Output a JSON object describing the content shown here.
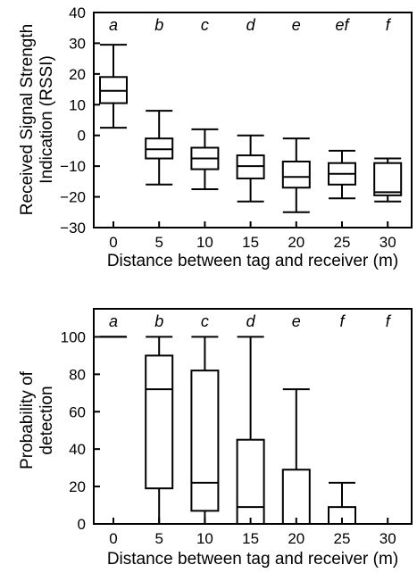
{
  "chart_data": [
    {
      "type": "boxplot",
      "categories": [
        "0",
        "5",
        "10",
        "15",
        "20",
        "25",
        "30"
      ],
      "group_letters": [
        "a",
        "b",
        "c",
        "d",
        "e",
        "ef",
        "f"
      ],
      "xlabel": "Distance between tag and receiver (m)",
      "ylabel": [
        "Received Signal Strength",
        "Indication (RSSI)"
      ],
      "ylim": [
        -30,
        40
      ],
      "yticks": [
        "40",
        "30",
        "20",
        "10",
        "0",
        "−10",
        "−20",
        "−30"
      ],
      "ytick_values": [
        40,
        30,
        20,
        10,
        0,
        -10,
        -20,
        -30
      ],
      "boxes": [
        {
          "min": 2.5,
          "q1": 10.5,
          "median": 14.5,
          "q3": 19,
          "max": 29.5
        },
        {
          "min": -16,
          "q1": -7.5,
          "median": -4.5,
          "q3": -1,
          "max": 8
        },
        {
          "min": -17.5,
          "q1": -11,
          "median": -7.5,
          "q3": -4,
          "max": 2
        },
        {
          "min": -21.5,
          "q1": -14,
          "median": -10,
          "q3": -6.5,
          "max": 0
        },
        {
          "min": -25,
          "q1": -17,
          "median": -13.5,
          "q3": -8.5,
          "max": -1
        },
        {
          "min": -20.5,
          "q1": -16,
          "median": -12.5,
          "q3": -9,
          "max": -5
        },
        {
          "min": -21.5,
          "q1": -19.5,
          "median": -18.5,
          "q3": -9,
          "max": -7.5
        }
      ]
    },
    {
      "type": "boxplot",
      "categories": [
        "0",
        "5",
        "10",
        "15",
        "20",
        "25",
        "30"
      ],
      "group_letters": [
        "a",
        "b",
        "c",
        "d",
        "e",
        "f",
        "f"
      ],
      "xlabel": "Distance between tag and receiver (m)",
      "ylabel": [
        "Probability of",
        "detection"
      ],
      "ylim": [
        0,
        115
      ],
      "yticks": [
        "100",
        "80",
        "60",
        "40",
        "20",
        "0"
      ],
      "ytick_values": [
        100,
        80,
        60,
        40,
        20,
        0
      ],
      "boxes": [
        {
          "min": 100,
          "q1": 100,
          "median": 100,
          "q3": 100,
          "max": 100
        },
        {
          "min": 0,
          "q1": 19,
          "median": 72,
          "q3": 90,
          "max": 100
        },
        {
          "min": 0,
          "q1": 7,
          "median": 22,
          "q3": 82,
          "max": 100
        },
        {
          "min": 0,
          "q1": 0,
          "median": 9,
          "q3": 45,
          "max": 100
        },
        {
          "min": 0,
          "q1": 0,
          "median": 0,
          "q3": 29,
          "max": 72
        },
        {
          "min": 0,
          "q1": 0,
          "median": 0,
          "q3": 9,
          "max": 22
        },
        {
          "min": 0,
          "q1": 0,
          "median": 0,
          "q3": 0,
          "max": 0
        }
      ]
    }
  ]
}
